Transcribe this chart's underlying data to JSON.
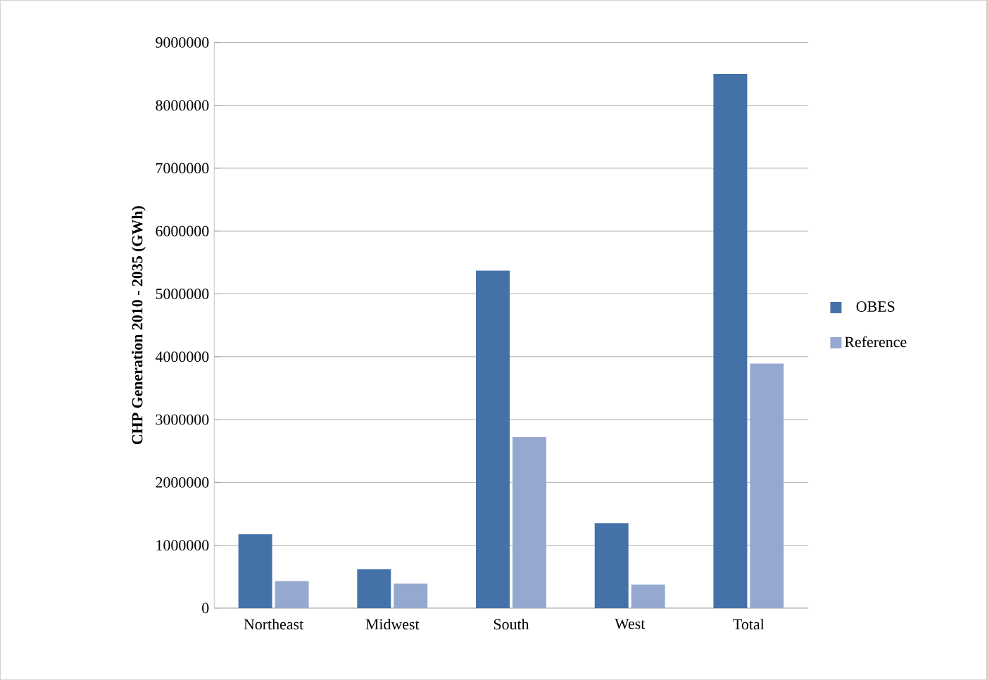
{
  "chart_data": {
    "type": "bar",
    "ylabel": "CHP Generation 2010 - 2035 (GWh)",
    "categories": [
      "Northeast",
      "Midwest",
      "South",
      "West",
      "Total"
    ],
    "series": [
      {
        "name": "OBES",
        "color": "#4472a8",
        "values": [
          1175000,
          620000,
          5370000,
          1350000,
          8500000
        ]
      },
      {
        "name": "Reference",
        "color": "#95a9d0",
        "values": [
          430000,
          390000,
          2720000,
          375000,
          3890000
        ]
      }
    ],
    "ylim": [
      0,
      9000000
    ],
    "yticks": [
      0,
      1000000,
      2000000,
      3000000,
      4000000,
      5000000,
      6000000,
      7000000,
      8000000,
      9000000
    ],
    "grid": "y",
    "legend": "right"
  }
}
